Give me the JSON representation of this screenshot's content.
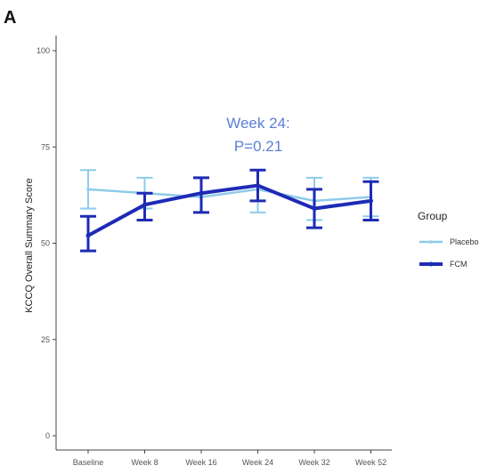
{
  "chart_data": {
    "type": "line",
    "panel_label": "A",
    "title": "",
    "xlabel": "",
    "ylabel": "KCCQ Overall Summary Score",
    "ylim": [
      0,
      100
    ],
    "yticks": [
      0,
      25,
      50,
      75,
      100
    ],
    "categories": [
      "Baseline",
      "Week 8",
      "Week 16",
      "Week 24",
      "Week 32",
      "Week 52"
    ],
    "grid": false,
    "legend": {
      "title": "Group",
      "placement": "right"
    },
    "annotation": {
      "line1": "Week 24:",
      "line2": "P=0.21",
      "color": "#5b7fd4"
    },
    "series": [
      {
        "name": "Placebo",
        "color": "#8ecbea",
        "values": [
          64,
          63,
          62,
          64,
          61,
          62
        ],
        "lower": [
          59,
          59,
          58,
          58,
          56,
          57
        ],
        "upper": [
          69,
          67,
          67,
          69,
          67,
          67
        ]
      },
      {
        "name": "FCM",
        "color": "#1d2bb5",
        "values": [
          52,
          60,
          63,
          65,
          59,
          61
        ],
        "lower": [
          48,
          56,
          58,
          61,
          54,
          56
        ],
        "upper": [
          57,
          63,
          67,
          69,
          64,
          66
        ]
      }
    ]
  }
}
